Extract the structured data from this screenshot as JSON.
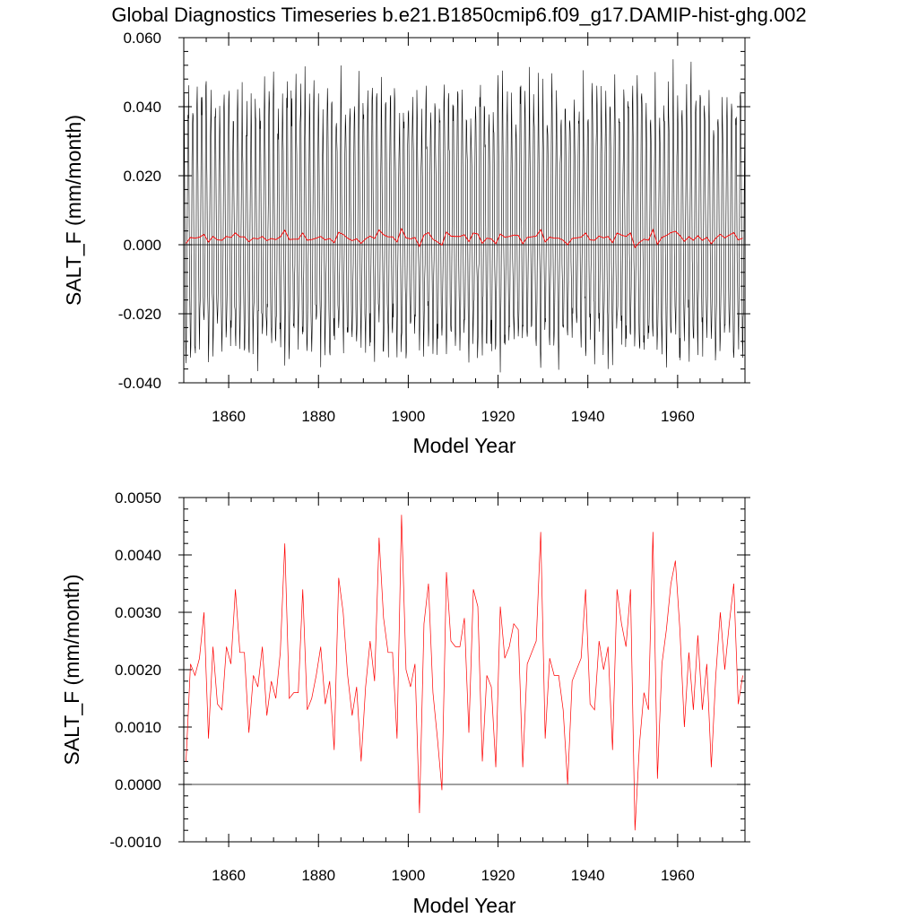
{
  "title": "Global Diagnostics Timeseries b.e21.B1850cmip6.f09_g17.DAMIP-hist-ghg.002",
  "colors": {
    "monthly": "#000000",
    "annual": "#ff0000",
    "zero_line": "#000000"
  },
  "chart_data": [
    {
      "type": "line",
      "xlabel": "Model Year",
      "ylabel": "SALT_F (mm/month)",
      "xlim": [
        1850,
        1975
      ],
      "ylim": [
        -0.04,
        0.06
      ],
      "x_ticks": [
        1860,
        1880,
        1900,
        1920,
        1940,
        1960
      ],
      "y_ticks": [
        -0.04,
        -0.02,
        0.0,
        0.02,
        0.04,
        0.06
      ],
      "y_tick_labels": [
        "-0.040",
        "-0.020",
        "0.000",
        "0.020",
        "0.040",
        "0.060"
      ],
      "zero_line": 0,
      "monthly_series": {
        "description": "monthly values oscillating seasonally",
        "approx_seasonal_max": 0.045,
        "approx_seasonal_min": -0.031,
        "overall_max": 0.057,
        "overall_min": -0.038
      },
      "series": [
        {
          "color": "#ff0000"
        }
      ]
    },
    {
      "type": "line",
      "xlabel": "Model Year",
      "ylabel": "SALT_F (mm/month)",
      "xlim": [
        1850,
        1975
      ],
      "ylim": [
        -0.001,
        0.005
      ],
      "x_ticks": [
        1860,
        1880,
        1900,
        1920,
        1940,
        1960
      ],
      "y_ticks": [
        -0.001,
        0.0,
        0.001,
        0.002,
        0.003,
        0.004,
        0.005
      ],
      "y_tick_labels": [
        "-0.0010",
        "0.0000",
        "0.0010",
        "0.0020",
        "0.0030",
        "0.0040",
        "0.0050"
      ],
      "zero_line": 0,
      "series": [
        {
          "color": "#ff0000",
          "x": [
            1850,
            1851,
            1852,
            1853,
            1854,
            1855,
            1856,
            1857,
            1858,
            1859,
            1860,
            1861,
            1862,
            1863,
            1864,
            1865,
            1866,
            1867,
            1868,
            1869,
            1870,
            1871,
            1872,
            1873,
            1874,
            1875,
            1876,
            1877,
            1878,
            1879,
            1880,
            1881,
            1882,
            1883,
            1884,
            1885,
            1886,
            1887,
            1888,
            1889,
            1890,
            1891,
            1892,
            1893,
            1894,
            1895,
            1896,
            1897,
            1898,
            1899,
            1900,
            1901,
            1902,
            1903,
            1904,
            1905,
            1906,
            1907,
            1908,
            1909,
            1910,
            1911,
            1912,
            1913,
            1914,
            1915,
            1916,
            1917,
            1918,
            1919,
            1920,
            1921,
            1922,
            1923,
            1924,
            1925,
            1926,
            1927,
            1928,
            1929,
            1930,
            1931,
            1932,
            1933,
            1934,
            1935,
            1936,
            1937,
            1938,
            1939,
            1940,
            1941,
            1942,
            1943,
            1944,
            1945,
            1946,
            1947,
            1948,
            1949,
            1950,
            1951,
            1952,
            1953,
            1954,
            1955,
            1956,
            1957,
            1958,
            1959,
            1960,
            1961,
            1962,
            1963,
            1964,
            1965,
            1966,
            1967,
            1968,
            1969,
            1970,
            1971,
            1972,
            1973,
            1974
          ],
          "values": [
            0.0004,
            0.0021,
            0.0019,
            0.0022,
            0.003,
            0.0008,
            0.0024,
            0.0014,
            0.0013,
            0.0024,
            0.0021,
            0.0034,
            0.0023,
            0.0023,
            0.0009,
            0.0019,
            0.0017,
            0.0024,
            0.0012,
            0.0018,
            0.0015,
            0.0023,
            0.0042,
            0.0015,
            0.0016,
            0.0016,
            0.0034,
            0.0013,
            0.0015,
            0.0019,
            0.0024,
            0.0014,
            0.0018,
            0.0006,
            0.0036,
            0.003,
            0.0019,
            0.0012,
            0.0017,
            0.0004,
            0.0017,
            0.0025,
            0.0018,
            0.0043,
            0.0029,
            0.0023,
            0.0023,
            0.0008,
            0.0047,
            0.002,
            0.0017,
            0.0021,
            -0.0005,
            0.0028,
            0.0035,
            0.0016,
            0.0008,
            -0.0001,
            0.0037,
            0.0025,
            0.0024,
            0.0024,
            0.0029,
            0.0009,
            0.0034,
            0.0031,
            0.0004,
            0.0019,
            0.0017,
            0.0003,
            0.0031,
            0.0022,
            0.0024,
            0.0028,
            0.0027,
            0.0003,
            0.0021,
            0.0023,
            0.0025,
            0.0044,
            0.0008,
            0.0022,
            0.0019,
            0.0019,
            0.0013,
            0.0,
            0.0018,
            0.002,
            0.0022,
            0.0034,
            0.0014,
            0.0013,
            0.0025,
            0.002,
            0.0024,
            0.0006,
            0.0034,
            0.0028,
            0.0024,
            0.0034,
            -0.0008,
            0.0007,
            0.0016,
            0.0013,
            0.0044,
            0.0001,
            0.0021,
            0.0027,
            0.0035,
            0.0039,
            0.0027,
            0.001,
            0.0023,
            0.0013,
            0.0026,
            0.0013,
            0.0021,
            0.0003,
            0.0019,
            0.003,
            0.002,
            0.0028,
            0.0035,
            0.0014,
            0.0019
          ]
        }
      ]
    }
  ]
}
